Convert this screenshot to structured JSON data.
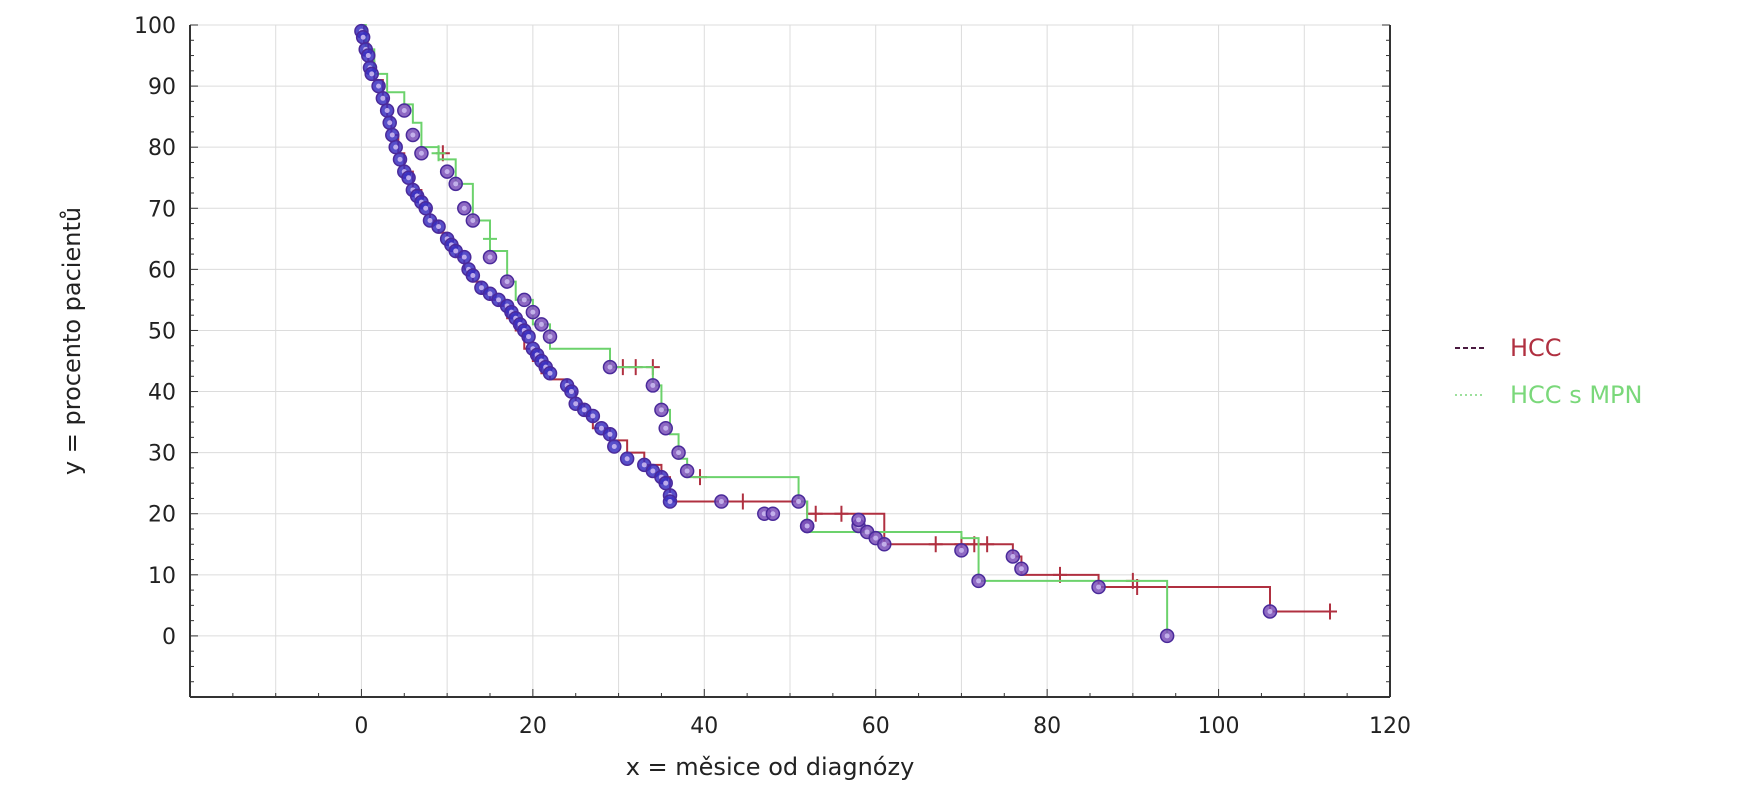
{
  "chart_data": {
    "type": "line",
    "subtype": "kaplan-meier-step",
    "title": "",
    "xlabel": "x = měsice od diagnózy",
    "ylabel": "y = procento pacientů",
    "xlim": [
      -20,
      120
    ],
    "ylim": [
      -10,
      100
    ],
    "x_ticks": [
      "0",
      "20",
      "40",
      "60",
      "80",
      "100",
      "120"
    ],
    "y_ticks": [
      "100",
      "90",
      "80",
      "70",
      "60",
      "50",
      "40",
      "30",
      "20",
      "10",
      "0"
    ],
    "grid": true,
    "legend_position": "right",
    "series": [
      {
        "name": "HCC",
        "color": "#b03040",
        "line_style": "dashed",
        "steps": [
          [
            0,
            100
          ],
          [
            0.3,
            97
          ],
          [
            0.8,
            94
          ],
          [
            1.5,
            91
          ],
          [
            2.5,
            88
          ],
          [
            3,
            85
          ],
          [
            3.5,
            82
          ],
          [
            4.3,
            79
          ],
          [
            5,
            76
          ],
          [
            6,
            73
          ],
          [
            7,
            70
          ],
          [
            8,
            68
          ],
          [
            9,
            66
          ],
          [
            10,
            64
          ],
          [
            11,
            62
          ],
          [
            12,
            60
          ],
          [
            13,
            58
          ],
          [
            14,
            56
          ],
          [
            15,
            55
          ],
          [
            16,
            54
          ],
          [
            17,
            52
          ],
          [
            18,
            50
          ],
          [
            19,
            47
          ],
          [
            20,
            45
          ],
          [
            21,
            43
          ],
          [
            22,
            42
          ],
          [
            24,
            40
          ],
          [
            25,
            38
          ],
          [
            26,
            36
          ],
          [
            27,
            34
          ],
          [
            29,
            32
          ],
          [
            31,
            30
          ],
          [
            33,
            28
          ],
          [
            35,
            26
          ],
          [
            36,
            22
          ],
          [
            52,
            20
          ],
          [
            61,
            15
          ],
          [
            76,
            13
          ],
          [
            77,
            10
          ],
          [
            86,
            8
          ],
          [
            106,
            4
          ],
          [
            113,
            4
          ]
        ],
        "censor_marks": [
          [
            9.5,
            79
          ],
          [
            30.5,
            44
          ],
          [
            32,
            44
          ],
          [
            34,
            44
          ],
          [
            39.5,
            26
          ],
          [
            44.5,
            22
          ],
          [
            53,
            20
          ],
          [
            56,
            20
          ],
          [
            67,
            15
          ],
          [
            70,
            15
          ],
          [
            71.5,
            15
          ],
          [
            73,
            15
          ],
          [
            81.5,
            10
          ],
          [
            90,
            9
          ],
          [
            90.5,
            8
          ],
          [
            113,
            4
          ]
        ],
        "event_markers": [
          [
            0,
            99
          ],
          [
            0.2,
            98
          ],
          [
            0.5,
            96
          ],
          [
            0.8,
            95
          ],
          [
            1,
            93
          ],
          [
            1.2,
            92
          ],
          [
            2,
            90
          ],
          [
            2.5,
            88
          ],
          [
            3,
            86
          ],
          [
            3.3,
            84
          ],
          [
            3.6,
            82
          ],
          [
            4,
            80
          ],
          [
            4.5,
            78
          ],
          [
            5,
            76
          ],
          [
            5.5,
            75
          ],
          [
            6,
            73
          ],
          [
            6.5,
            72
          ],
          [
            7,
            71
          ],
          [
            7.5,
            70
          ],
          [
            8,
            68
          ],
          [
            9,
            67
          ],
          [
            10,
            65
          ],
          [
            10.5,
            64
          ],
          [
            11,
            63
          ],
          [
            12,
            62
          ],
          [
            12.5,
            60
          ],
          [
            13,
            59
          ],
          [
            14,
            57
          ],
          [
            15,
            56
          ],
          [
            16,
            55
          ],
          [
            17,
            54
          ],
          [
            17.5,
            53
          ],
          [
            18,
            52
          ],
          [
            18.5,
            51
          ],
          [
            19,
            50
          ],
          [
            19.5,
            49
          ],
          [
            20,
            47
          ],
          [
            20.5,
            46
          ],
          [
            21,
            45
          ],
          [
            21.5,
            44
          ],
          [
            22,
            43
          ],
          [
            24,
            41
          ],
          [
            24.5,
            40
          ],
          [
            25,
            38
          ],
          [
            26,
            37
          ],
          [
            27,
            36
          ],
          [
            28,
            34
          ],
          [
            29,
            33
          ],
          [
            29.5,
            31
          ],
          [
            31,
            29
          ],
          [
            33,
            28
          ],
          [
            34,
            27
          ],
          [
            35,
            26
          ],
          [
            35.5,
            25
          ],
          [
            36,
            23
          ],
          [
            36,
            22
          ],
          [
            42,
            22
          ],
          [
            47,
            20
          ],
          [
            48,
            20
          ],
          [
            52,
            18
          ],
          [
            58,
            18
          ],
          [
            59,
            17
          ],
          [
            60,
            16
          ],
          [
            61,
            15
          ],
          [
            76,
            13
          ],
          [
            77,
            11
          ],
          [
            86,
            8
          ],
          [
            106,
            4
          ]
        ]
      },
      {
        "name": "HCC s MPN",
        "color": "#6cd26c",
        "line_style": "dotted",
        "steps": [
          [
            0,
            100
          ],
          [
            0.5,
            96
          ],
          [
            1.5,
            92
          ],
          [
            3,
            89
          ],
          [
            5,
            87
          ],
          [
            6,
            84
          ],
          [
            7,
            80
          ],
          [
            9,
            78
          ],
          [
            11,
            74
          ],
          [
            13,
            68
          ],
          [
            15,
            63
          ],
          [
            17,
            58
          ],
          [
            18,
            55
          ],
          [
            20,
            51
          ],
          [
            22,
            47
          ],
          [
            29,
            44
          ],
          [
            34,
            41
          ],
          [
            35,
            37
          ],
          [
            36,
            33
          ],
          [
            37,
            29
          ],
          [
            38,
            26
          ],
          [
            51,
            22
          ],
          [
            52,
            17
          ],
          [
            70,
            16
          ],
          [
            72,
            9
          ],
          [
            94,
            0
          ]
        ],
        "censor_marks": [
          [
            9,
            79
          ],
          [
            15,
            65
          ]
        ],
        "event_markers": [
          [
            5,
            86
          ],
          [
            6,
            82
          ],
          [
            7,
            79
          ],
          [
            10,
            76
          ],
          [
            11,
            74
          ],
          [
            12,
            70
          ],
          [
            13,
            68
          ],
          [
            15,
            62
          ],
          [
            17,
            58
          ],
          [
            19,
            55
          ],
          [
            20,
            53
          ],
          [
            21,
            51
          ],
          [
            22,
            49
          ],
          [
            29,
            44
          ],
          [
            34,
            41
          ],
          [
            35,
            37
          ],
          [
            35.5,
            34
          ],
          [
            37,
            30
          ],
          [
            38,
            27
          ],
          [
            51,
            22
          ],
          [
            52,
            18
          ],
          [
            58,
            19
          ],
          [
            70,
            14
          ],
          [
            72,
            9
          ],
          [
            94,
            0
          ]
        ]
      }
    ]
  },
  "legend": {
    "items": [
      {
        "name": "HCC",
        "label": "HCC",
        "color": "#b03040",
        "line_color": "#4a1a40"
      },
      {
        "name": "HCC s MPN",
        "label": "HCC s MPN",
        "color": "#7ad87a",
        "line_color": "#9ce09c"
      }
    ]
  }
}
